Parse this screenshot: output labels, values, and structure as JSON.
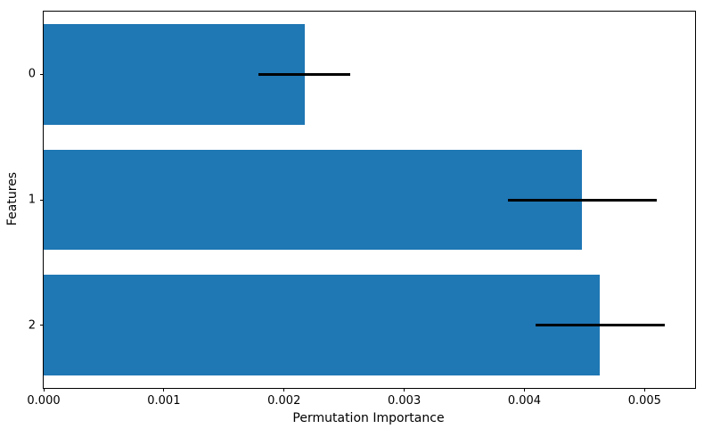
{
  "chart_data": {
    "type": "bar",
    "orientation": "horizontal",
    "title": "",
    "xlabel": "Permutation Importance",
    "ylabel": "Features",
    "categories": [
      "0",
      "1",
      "2"
    ],
    "series": [
      {
        "name": "permutation_importance",
        "values": [
          0.00217,
          0.00448,
          0.00463
        ],
        "errors": [
          0.00038,
          0.00062,
          0.00054
        ]
      }
    ],
    "xlim": [
      0,
      0.00542
    ],
    "xticks": {
      "values": [
        0,
        0.001,
        0.002,
        0.003,
        0.004,
        0.005
      ],
      "labels": [
        "0.000",
        "0.001",
        "0.002",
        "0.003",
        "0.004",
        "0.005"
      ]
    },
    "bar_color": "#1f77b4",
    "error_color": "#000000",
    "bar_band_fraction": 0.8,
    "grid": false,
    "legend": null
  }
}
